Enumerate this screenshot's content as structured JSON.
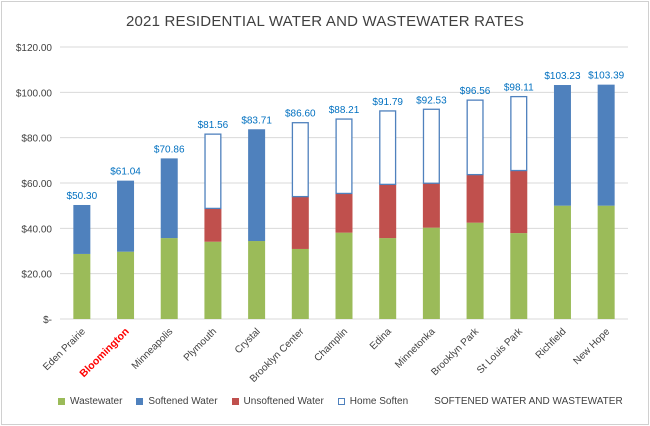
{
  "chart_data": {
    "type": "bar",
    "stacked": true,
    "title": "2021 RESIDENTIAL WATER AND WASTEWATER RATES",
    "xlabel": "",
    "ylabel": "",
    "ylim": [
      0,
      120
    ],
    "yticks": [
      "$-",
      "$20.00",
      "$40.00",
      "$60.00",
      "$80.00",
      "$100.00",
      "$120.00"
    ],
    "grid": true,
    "legend_position": "bottom",
    "highlight_category": "Bloomington",
    "highlight_color": "#ff0000",
    "categories": [
      "Eden Prairie",
      "Bloomington",
      "Minneapolis",
      "Plymouth",
      "Crystal",
      "Brooklyn Center",
      "Champlin",
      "Edina",
      "Minnetonka",
      "Brooklyn Park",
      "St Louis Park",
      "Richfield",
      "New Hope"
    ],
    "totals": [
      50.3,
      61.04,
      70.86,
      81.56,
      83.71,
      86.6,
      88.21,
      91.79,
      92.53,
      96.56,
      98.11,
      103.23,
      103.39
    ],
    "total_labels": [
      "$50.30",
      "$61.04",
      "$70.86",
      "$81.56",
      "$83.71",
      "$86.60",
      "$88.21",
      "$91.79",
      "$92.53",
      "$96.56",
      "$98.11",
      "$103.23",
      "$103.39"
    ],
    "series": [
      {
        "name": "Wastewater",
        "color": "#9bbb59",
        "values": [
          28.7,
          29.7,
          35.7,
          34.1,
          34.4,
          30.9,
          38.1,
          35.7,
          40.3,
          42.5,
          37.9,
          50.0,
          50.0
        ]
      },
      {
        "name": "Softened Water",
        "color": "#4f81bd",
        "values": [
          21.6,
          31.34,
          35.16,
          0,
          49.31,
          0,
          0,
          0,
          0,
          0,
          0,
          53.23,
          53.39
        ]
      },
      {
        "name": "Unsoftened Water",
        "color": "#c0504d",
        "values": [
          0,
          0,
          0,
          14.7,
          0,
          23.1,
          17.3,
          23.7,
          19.6,
          21.2,
          27.6,
          0,
          0
        ]
      },
      {
        "name": "Home Soften",
        "color": "#ffffff",
        "outline": "#4f81bd",
        "values": [
          0,
          0,
          0,
          32.76,
          0,
          32.6,
          32.81,
          32.39,
          32.63,
          32.86,
          32.61,
          0,
          0
        ]
      }
    ],
    "extra_legend_text": "SOFTENED WATER AND WASTEWATER",
    "label_color": "#0070c0"
  }
}
